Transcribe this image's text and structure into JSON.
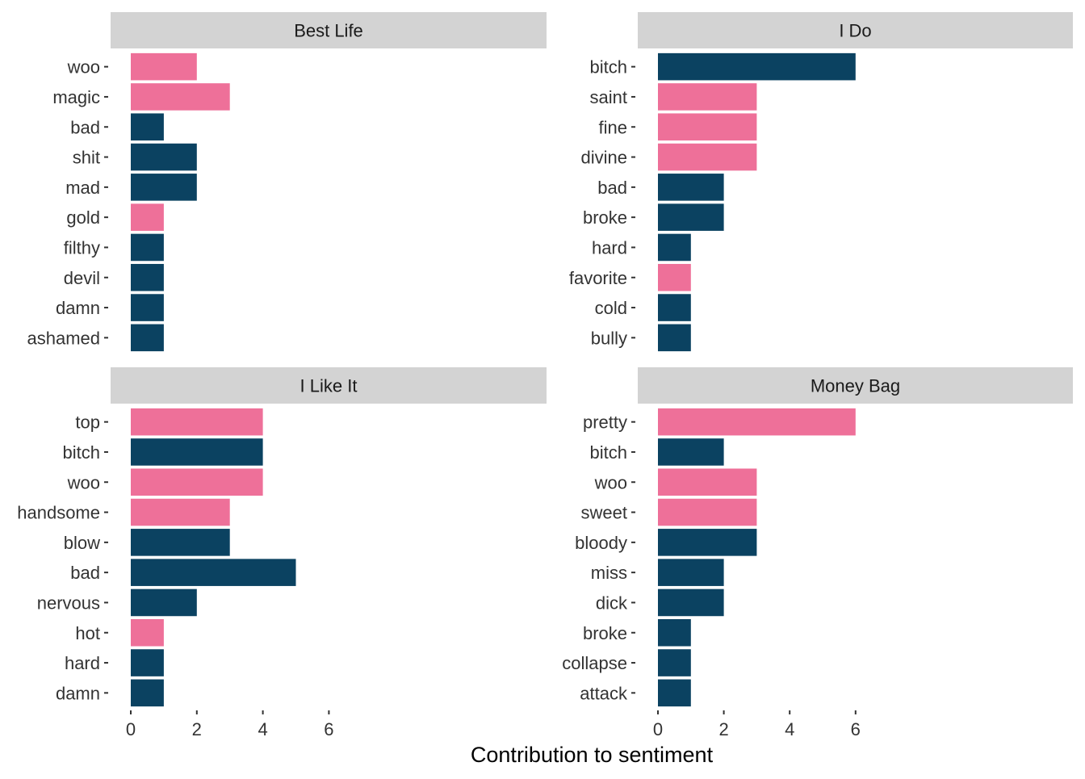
{
  "chart_data": [
    {
      "type": "bar",
      "orientation": "horizontal",
      "title": "Best Life",
      "categories": [
        "woo",
        "magic",
        "bad",
        "shit",
        "mad",
        "gold",
        "filthy",
        "devil",
        "damn",
        "ashamed"
      ],
      "values": [
        2,
        3,
        1,
        2,
        2,
        1,
        1,
        1,
        1,
        1
      ],
      "sentiment": [
        "positive",
        "positive",
        "negative",
        "negative",
        "negative",
        "positive",
        "negative",
        "negative",
        "negative",
        "negative"
      ],
      "xlim": [
        0,
        6.6
      ],
      "xticks": [
        0,
        2,
        4,
        6
      ],
      "show_xticks": false
    },
    {
      "type": "bar",
      "orientation": "horizontal",
      "title": "I Do",
      "categories": [
        "bitch",
        "saint",
        "fine",
        "divine",
        "bad",
        "broke",
        "hard",
        "favorite",
        "cold",
        "bully"
      ],
      "values": [
        6,
        3,
        3,
        3,
        2,
        2,
        1,
        1,
        1,
        1
      ],
      "sentiment": [
        "negative",
        "positive",
        "positive",
        "positive",
        "negative",
        "negative",
        "negative",
        "positive",
        "negative",
        "negative"
      ],
      "xlim": [
        0,
        6.1
      ],
      "xticks": [
        0,
        2,
        4,
        6
      ],
      "show_xticks": false
    },
    {
      "type": "bar",
      "orientation": "horizontal",
      "title": "I Like It",
      "categories": [
        "top",
        "bitch",
        "woo",
        "handsome",
        "blow",
        "bad",
        "nervous",
        "hot",
        "hard",
        "damn"
      ],
      "values": [
        4,
        4,
        4,
        3,
        3,
        5,
        2,
        1,
        1,
        1
      ],
      "sentiment": [
        "positive",
        "negative",
        "positive",
        "positive",
        "negative",
        "negative",
        "negative",
        "positive",
        "negative",
        "negative"
      ],
      "xlim": [
        0,
        6.6
      ],
      "xticks": [
        0,
        2,
        4,
        6
      ],
      "show_xticks": true
    },
    {
      "type": "bar",
      "orientation": "horizontal",
      "title": "Money Bag",
      "categories": [
        "pretty",
        "bitch",
        "woo",
        "sweet",
        "bloody",
        "miss",
        "dick",
        "broke",
        "collapse",
        "attack"
      ],
      "values": [
        6,
        2,
        3,
        3,
        3,
        2,
        2,
        1,
        1,
        1
      ],
      "sentiment": [
        "positive",
        "negative",
        "positive",
        "positive",
        "negative",
        "negative",
        "negative",
        "negative",
        "negative",
        "negative"
      ],
      "xlim": [
        0,
        6.1
      ],
      "xticks": [
        0,
        2,
        4,
        6
      ],
      "show_xticks": true
    }
  ],
  "xlabel": "Contribution to sentiment",
  "colors": {
    "positive": "#ee7099",
    "negative": "#0b4261",
    "strip": "#d3d3d3",
    "text": "#333333",
    "axis_title": "#000000"
  }
}
